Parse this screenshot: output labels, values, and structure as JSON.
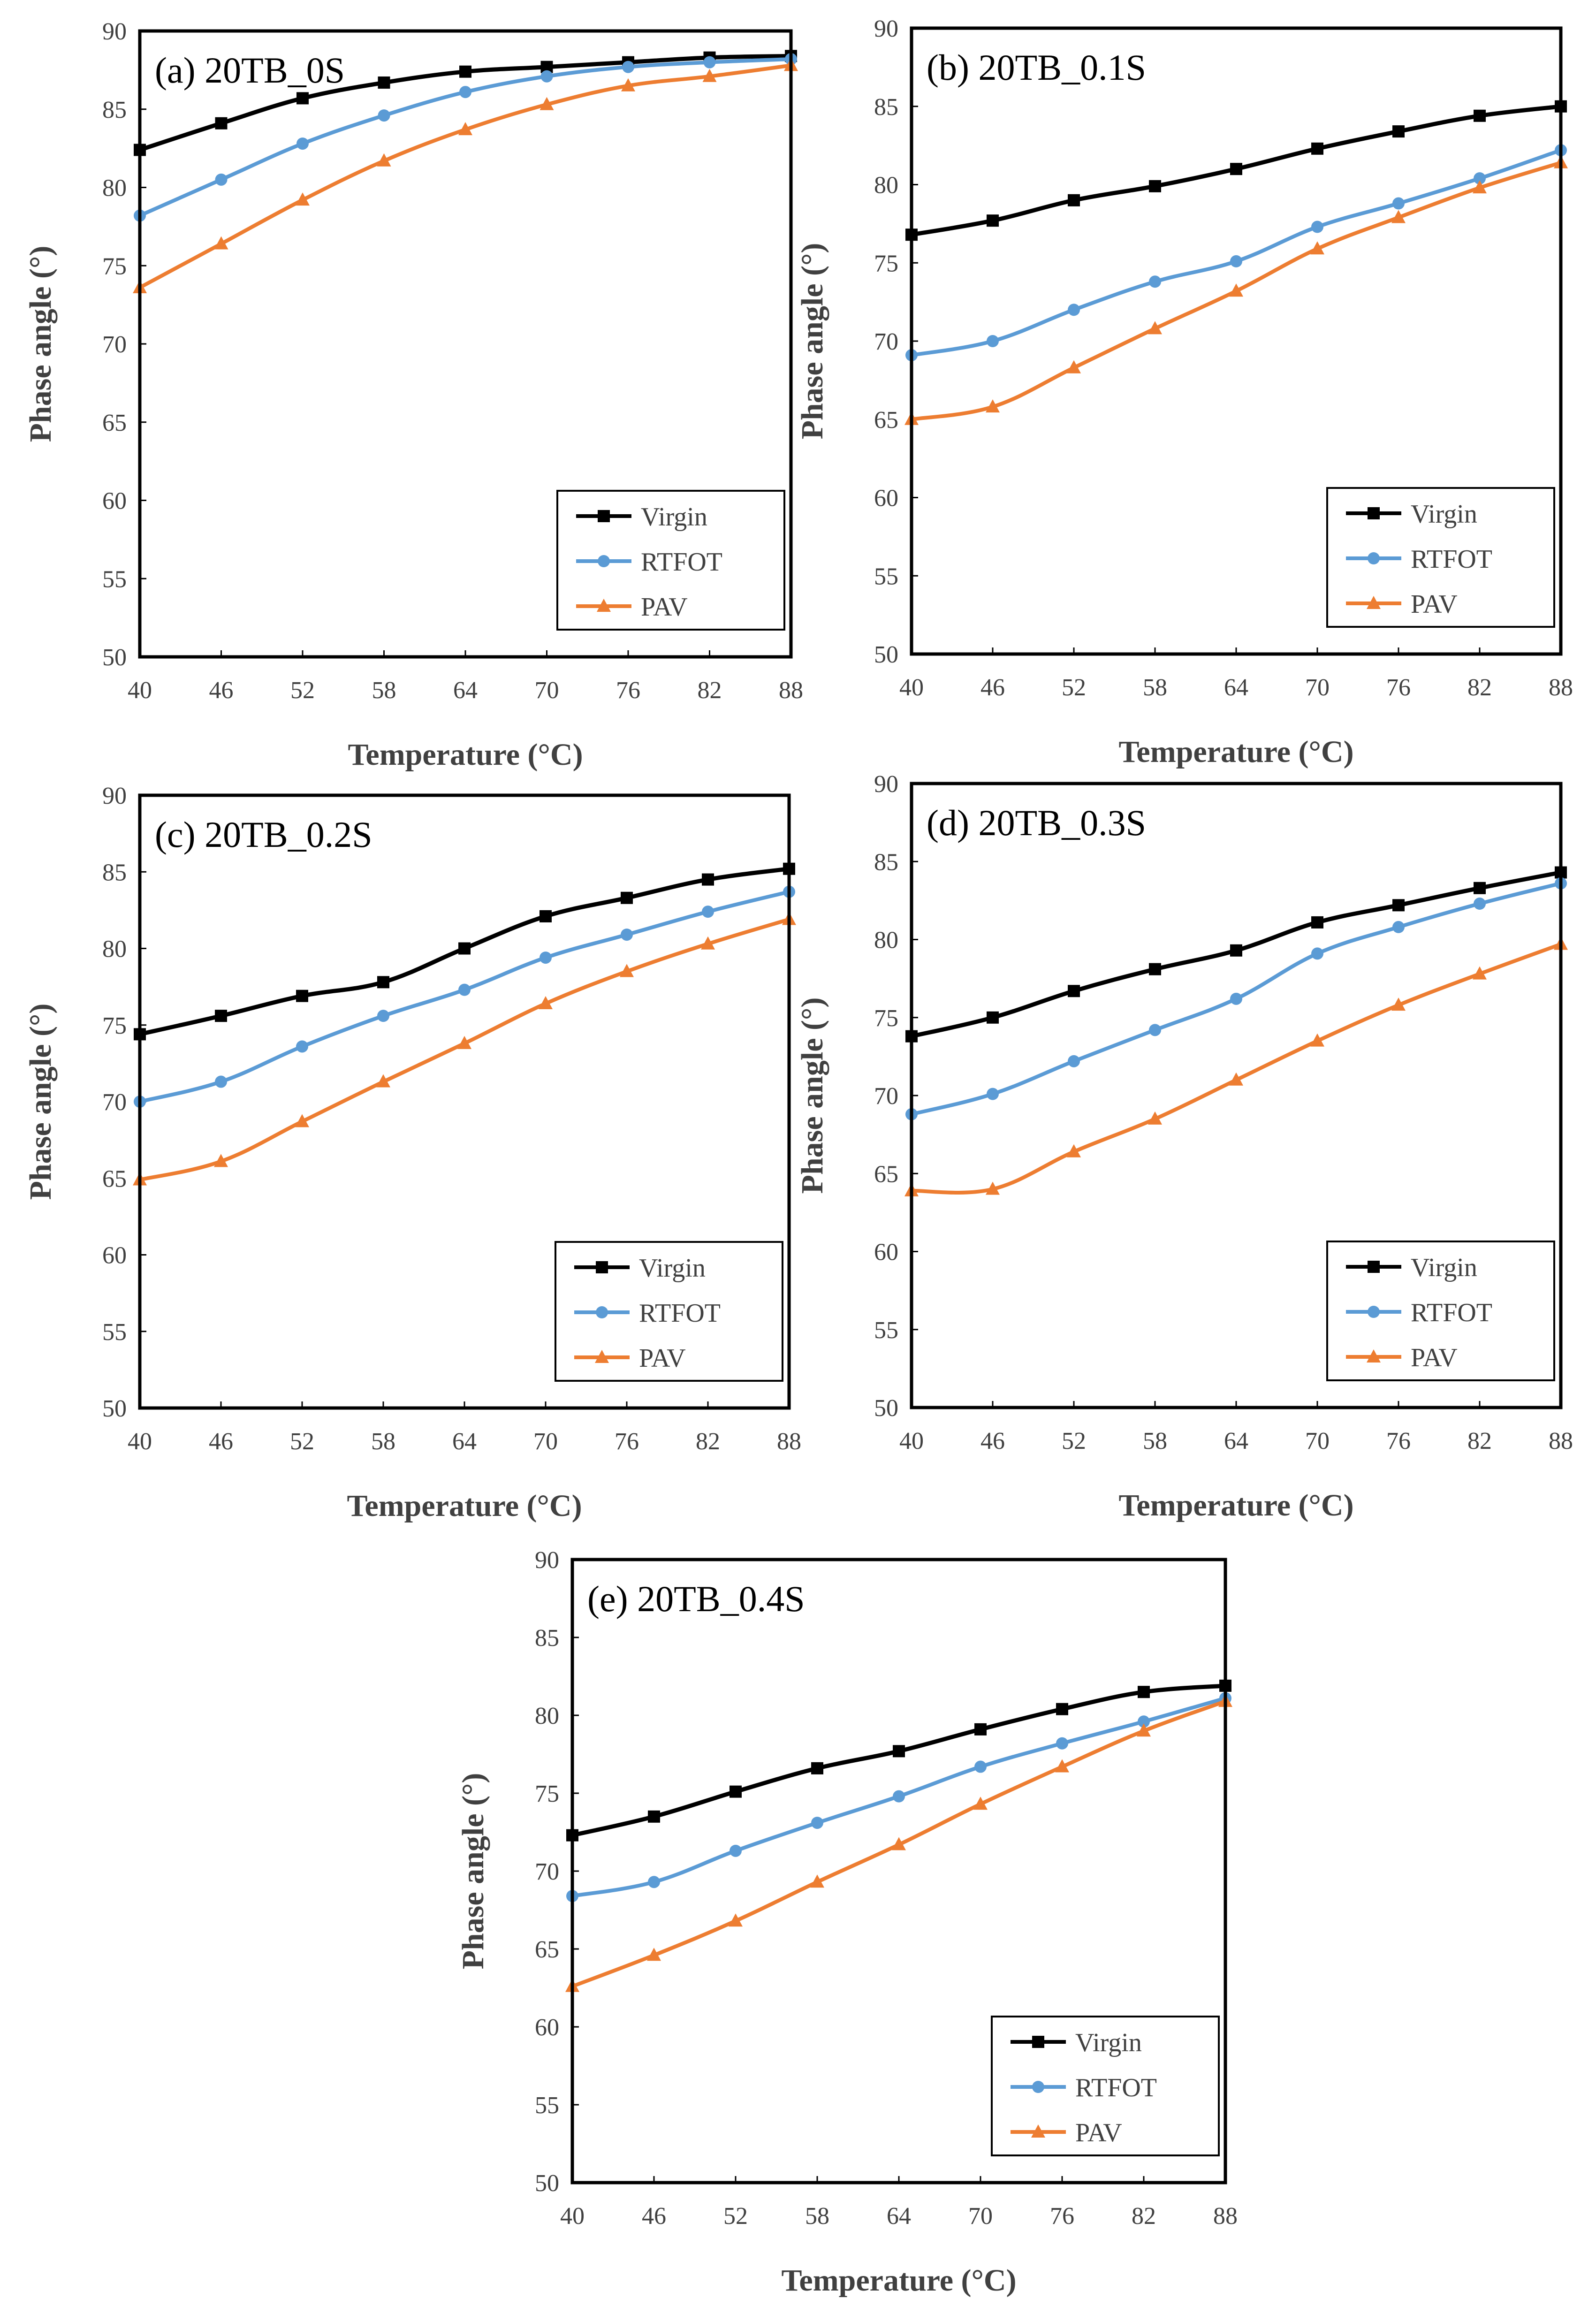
{
  "colors": {
    "Virgin": "#000000",
    "RTFOT": "#5b9bd5",
    "PAV": "#ed7d31",
    "axis": "#000000",
    "text": "#404040"
  },
  "chart_data": [
    {
      "type": "line",
      "title": "(a) 20TB_0S",
      "xlabel": "Temperature (°C)",
      "ylabel": "Phase angle (°)",
      "categories": [
        "40",
        "46",
        "52",
        "58",
        "64",
        "70",
        "76",
        "82",
        "88"
      ],
      "ylim": [
        50,
        90
      ],
      "yticks": [
        "50",
        "55",
        "60",
        "65",
        "70",
        "75",
        "80",
        "85",
        "90"
      ],
      "legend_position": "bottom-right",
      "series": [
        {
          "name": "Virgin",
          "marker": "square",
          "values": [
            82.4,
            84.1,
            85.7,
            86.7,
            87.4,
            87.7,
            88.0,
            88.3,
            88.4
          ]
        },
        {
          "name": "RTFOT",
          "marker": "circle",
          "values": [
            78.2,
            80.5,
            82.8,
            84.6,
            86.1,
            87.1,
            87.7,
            88.0,
            88.2
          ]
        },
        {
          "name": "PAV",
          "marker": "triangle",
          "values": [
            73.6,
            76.4,
            79.2,
            81.7,
            83.7,
            85.3,
            86.5,
            87.1,
            87.8
          ]
        }
      ]
    },
    {
      "type": "line",
      "title": "(b) 20TB_0.1S",
      "xlabel": "Temperature (°C)",
      "ylabel": "Phase angle (°)",
      "categories": [
        "40",
        "46",
        "52",
        "58",
        "64",
        "70",
        "76",
        "82",
        "88"
      ],
      "ylim": [
        50,
        90
      ],
      "yticks": [
        "50",
        "55",
        "60",
        "65",
        "70",
        "75",
        "80",
        "85",
        "90"
      ],
      "legend_position": "bottom-right",
      "series": [
        {
          "name": "Virgin",
          "marker": "square",
          "values": [
            76.8,
            77.7,
            79.0,
            79.9,
            81.0,
            82.3,
            83.4,
            84.4,
            85.0
          ]
        },
        {
          "name": "RTFOT",
          "marker": "circle",
          "values": [
            69.1,
            70.0,
            72.0,
            73.8,
            75.1,
            77.3,
            78.8,
            80.4,
            82.2
          ]
        },
        {
          "name": "PAV",
          "marker": "triangle",
          "values": [
            65.0,
            65.8,
            68.3,
            70.8,
            73.2,
            75.9,
            77.9,
            79.8,
            81.4
          ]
        }
      ]
    },
    {
      "type": "line",
      "title": "(c) 20TB_0.2S",
      "xlabel": "Temperature (°C)",
      "ylabel": "Phase angle (°)",
      "categories": [
        "40",
        "46",
        "52",
        "58",
        "64",
        "70",
        "76",
        "82",
        "88"
      ],
      "ylim": [
        50,
        90
      ],
      "yticks": [
        "50",
        "55",
        "60",
        "65",
        "70",
        "75",
        "80",
        "85",
        "90"
      ],
      "legend_position": "bottom-right",
      "series": [
        {
          "name": "Virgin",
          "marker": "square",
          "values": [
            74.4,
            75.6,
            76.9,
            77.8,
            80.0,
            82.1,
            83.3,
            84.5,
            85.2
          ]
        },
        {
          "name": "RTFOT",
          "marker": "circle",
          "values": [
            70.0,
            71.3,
            73.6,
            75.6,
            77.3,
            79.4,
            80.9,
            82.4,
            83.7
          ]
        },
        {
          "name": "PAV",
          "marker": "triangle",
          "values": [
            64.9,
            66.1,
            68.7,
            71.3,
            73.8,
            76.4,
            78.5,
            80.3,
            81.9
          ]
        }
      ]
    },
    {
      "type": "line",
      "title": "(d) 20TB_0.3S",
      "xlabel": "Temperature (°C)",
      "ylabel": "Phase angle (°)",
      "categories": [
        "40",
        "46",
        "52",
        "58",
        "64",
        "70",
        "76",
        "82",
        "88"
      ],
      "ylim": [
        50,
        90
      ],
      "yticks": [
        "50",
        "55",
        "60",
        "65",
        "70",
        "75",
        "80",
        "85",
        "90"
      ],
      "legend_position": "bottom-right",
      "series": [
        {
          "name": "Virgin",
          "marker": "square",
          "values": [
            73.8,
            75.0,
            76.7,
            78.1,
            79.3,
            81.1,
            82.2,
            83.3,
            84.3
          ]
        },
        {
          "name": "RTFOT",
          "marker": "circle",
          "values": [
            68.8,
            70.1,
            72.2,
            74.2,
            76.2,
            79.1,
            80.8,
            82.3,
            83.6
          ]
        },
        {
          "name": "PAV",
          "marker": "triangle",
          "values": [
            63.9,
            64.0,
            66.4,
            68.5,
            71.0,
            73.5,
            75.8,
            77.8,
            79.7
          ]
        }
      ]
    },
    {
      "type": "line",
      "title": "(e) 20TB_0.4S",
      "xlabel": "Temperature (°C)",
      "ylabel": "Phase angle (°)",
      "categories": [
        "40",
        "46",
        "52",
        "58",
        "64",
        "70",
        "76",
        "82",
        "88"
      ],
      "ylim": [
        50,
        90
      ],
      "yticks": [
        "50",
        "55",
        "60",
        "65",
        "70",
        "75",
        "80",
        "85",
        "90"
      ],
      "legend_position": "bottom-right",
      "series": [
        {
          "name": "Virgin",
          "marker": "square",
          "values": [
            72.3,
            73.5,
            75.1,
            76.6,
            77.7,
            79.1,
            80.4,
            81.5,
            81.9
          ]
        },
        {
          "name": "RTFOT",
          "marker": "circle",
          "values": [
            68.4,
            69.3,
            71.3,
            73.1,
            74.8,
            76.7,
            78.2,
            79.6,
            81.1
          ]
        },
        {
          "name": "PAV",
          "marker": "triangle",
          "values": [
            62.6,
            64.6,
            66.8,
            69.3,
            71.7,
            74.3,
            76.7,
            79.0,
            80.9
          ]
        }
      ]
    }
  ]
}
